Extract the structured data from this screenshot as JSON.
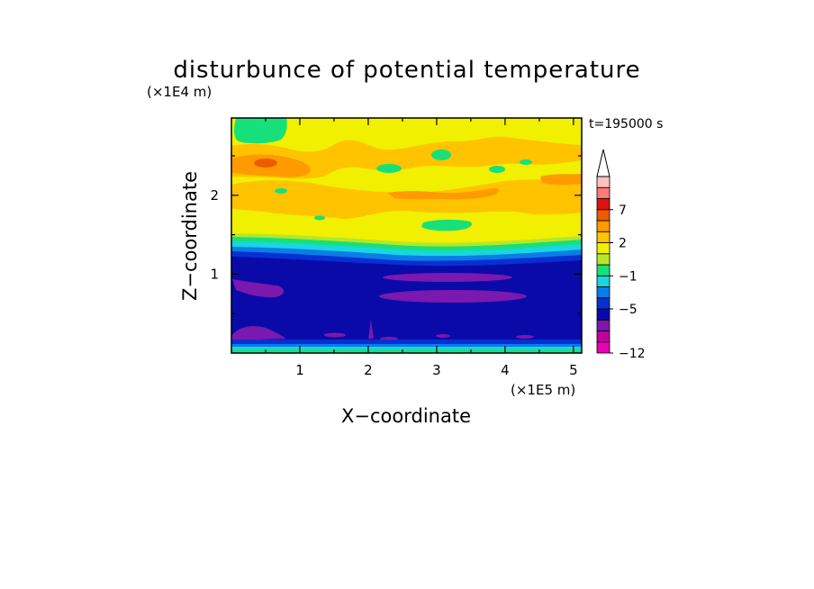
{
  "chart_data": {
    "type": "heatmap",
    "title": "disturbunce of potential temperature",
    "xlabel": "X−coordinate",
    "ylabel": "Z−coordinate",
    "x_scale_label": "(×1E5 m)",
    "y_scale_label": "(×1E4 m)",
    "time_label": "t=195000 s",
    "xlim": [
      0,
      5.12
    ],
    "ylim": [
      0,
      2.98
    ],
    "x_ticks": [
      {
        "value": 1,
        "label": "1"
      },
      {
        "value": 2,
        "label": "2"
      },
      {
        "value": 3,
        "label": "3"
      },
      {
        "value": 4,
        "label": "4"
      },
      {
        "value": 5,
        "label": "5"
      }
    ],
    "y_ticks": [
      {
        "value": 1,
        "label": "1"
      },
      {
        "value": 2,
        "label": "2"
      }
    ],
    "colorbar": {
      "levels": [
        -12,
        -11,
        -9,
        -7,
        -5,
        -4,
        -3,
        -1,
        0,
        1,
        2,
        3,
        5,
        7,
        9,
        11
      ],
      "colors": [
        "#e800b4",
        "#c0009c",
        "#7a18b0",
        "#0a0aa8",
        "#0630d2",
        "#0a7de6",
        "#19d6e2",
        "#17e07a",
        "#b6e629",
        "#f0f000",
        "#ffc300",
        "#ff9a00",
        "#ee5a00",
        "#e01010",
        "#ff7a7a",
        "#ffc0c0"
      ],
      "labels": [
        {
          "value": -12,
          "label": "−12"
        },
        {
          "value": -5,
          "label": "−5"
        },
        {
          "value": -1,
          "label": "−1"
        },
        {
          "value": 2,
          "label": "2"
        },
        {
          "value": 7,
          "label": "7"
        }
      ],
      "extend_max": true
    },
    "field_description": [
      {
        "x": [
          0,
          5.12
        ],
        "y": [
          0,
          0.08
        ],
        "value": 0
      },
      {
        "x": [
          0,
          5.12
        ],
        "y": [
          0.08,
          1.28
        ],
        "value": -5
      },
      {
        "x": [
          0,
          5.12
        ],
        "y": [
          1.28,
          2.98
        ],
        "value": 2
      }
    ]
  }
}
